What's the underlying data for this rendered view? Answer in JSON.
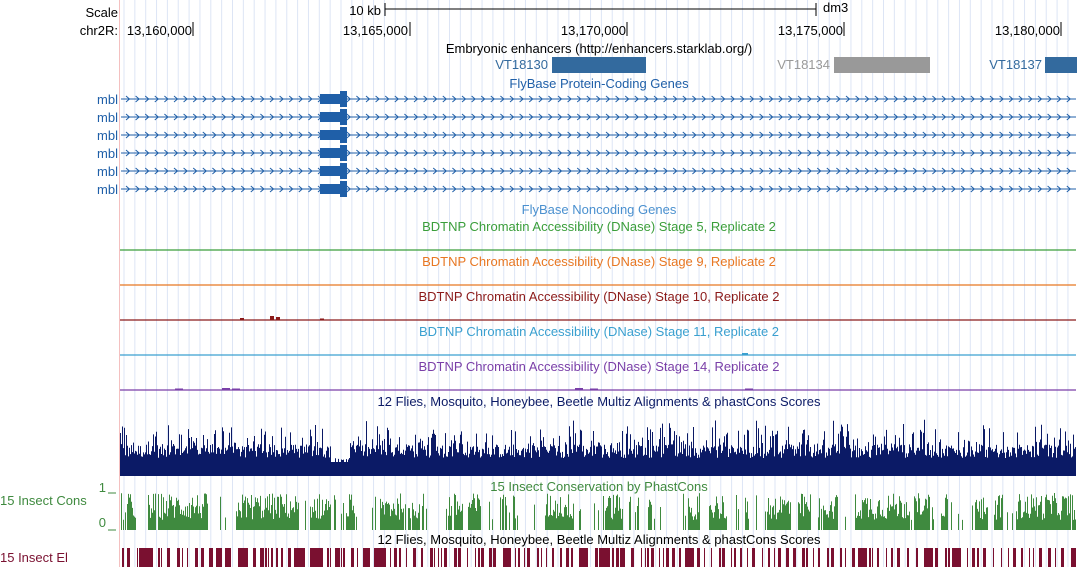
{
  "ruler": {
    "scale_label": "Scale",
    "chrom_label": "chr2R:",
    "scale_bar_label": "10 kb",
    "assembly": "dm3",
    "ticks": [
      "13,160,000",
      "13,165,000",
      "13,170,000",
      "13,175,000",
      "13,180,000"
    ]
  },
  "tracks": {
    "enhancers": {
      "title": "Embryonic enhancers (http://enhancers.starklab.org/)",
      "items": [
        {
          "name": "VT18130",
          "color": "#336a9e"
        },
        {
          "name": "VT18134",
          "color": "#999999"
        },
        {
          "name": "VT18137",
          "color": "#336a9e"
        }
      ]
    },
    "coding_genes": {
      "title": "FlyBase Protein-Coding Genes",
      "color": "#1f5fa8",
      "gene_labels": [
        "mbl",
        "mbl",
        "mbl",
        "mbl",
        "mbl",
        "mbl"
      ]
    },
    "noncoding_genes": {
      "title": "FlyBase Noncoding Genes",
      "color": "#4a90cf"
    },
    "dnase": [
      {
        "title": "BDTNP Chromatin Accessibility (DNase) Stage 5, Replicate 2",
        "color": "#3a9e3a"
      },
      {
        "title": "BDTNP Chromatin Accessibility (DNase) Stage 9, Replicate 2",
        "color": "#e87722"
      },
      {
        "title": "BDTNP Chromatin Accessibility (DNase) Stage 10, Replicate 2",
        "color": "#8b1a1a"
      },
      {
        "title": "BDTNP Chromatin Accessibility (DNase) Stage 11, Replicate 2",
        "color": "#3aa0d0"
      },
      {
        "title": "BDTNP Chromatin Accessibility (DNase) Stage 14, Replicate 2",
        "color": "#7a3fa8"
      }
    ],
    "multiz": {
      "title": "12 Flies, Mosquito, Honeybee, Beetle Multiz Alignments & phastCons Scores",
      "color": "#0b1a66"
    },
    "insect_cons": {
      "side_label": "15 Insect Cons",
      "title": "15 Insect Conservation by PhastCons",
      "y_max_label": "1",
      "y_min_label": "0",
      "color": "#3f8a3f"
    },
    "multiz2": {
      "title": "12 Flies, Mosquito, Honeybee, Beetle Multiz Alignments & phastCons Scores"
    },
    "insect_el": {
      "side_label": "15 Insect El",
      "color": "#7a1030"
    }
  }
}
